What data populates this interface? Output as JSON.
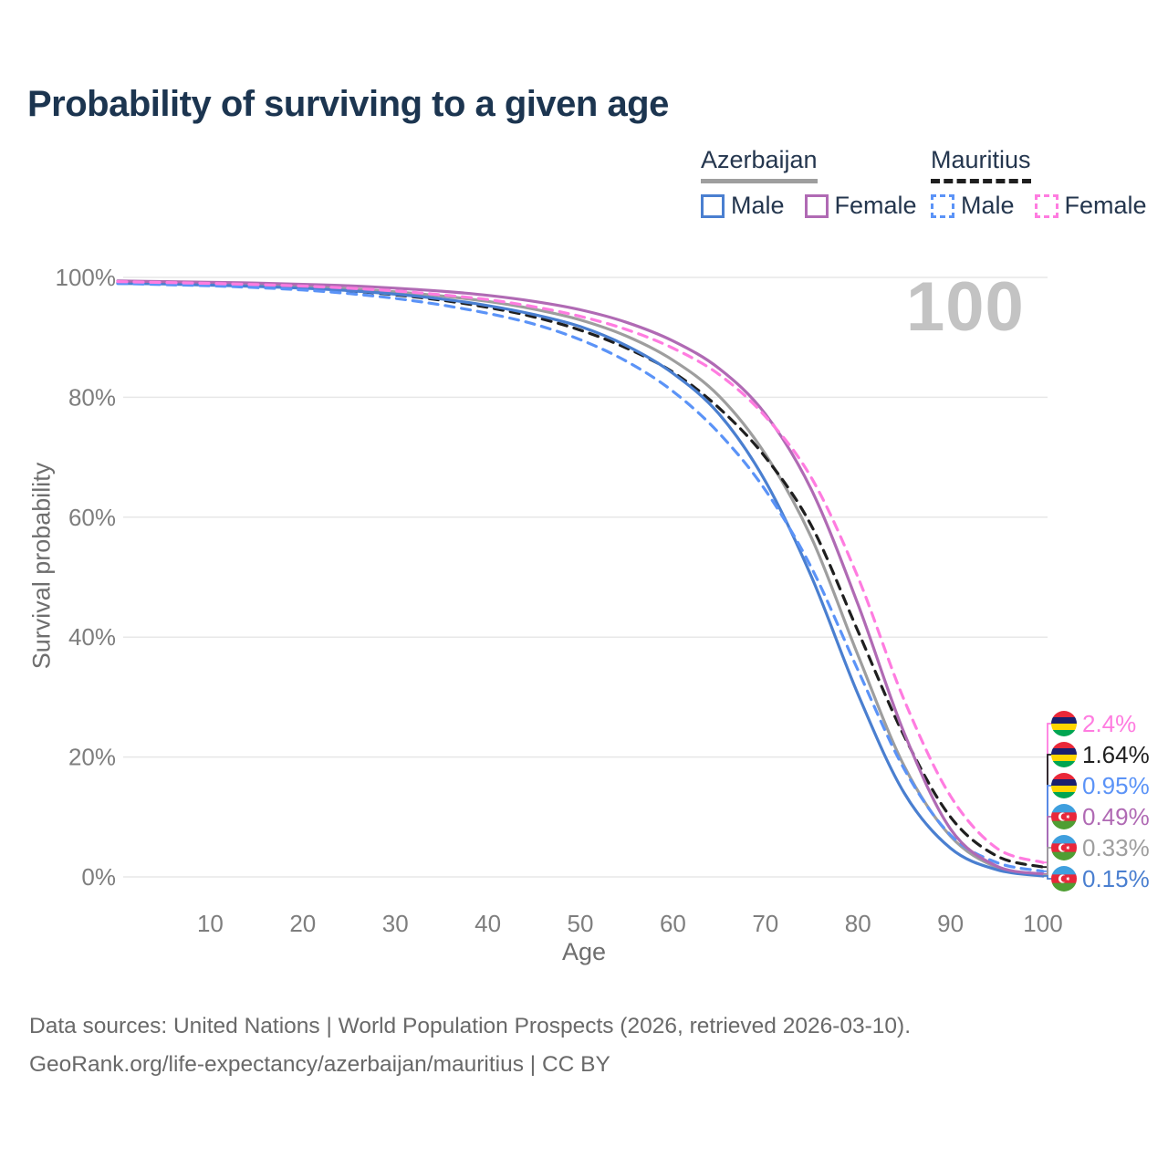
{
  "header": {
    "title": "Probability of surviving to a given age"
  },
  "legend": {
    "groups": [
      {
        "country": "Azerbaijan",
        "swatch_style": "solid",
        "swatch_color": "#9e9e9e",
        "items": [
          {
            "label": "Male",
            "box_style": "solid",
            "box_color": "#4a7fd0"
          },
          {
            "label": "Female",
            "box_style": "solid",
            "box_color": "#b06ab4"
          }
        ]
      },
      {
        "country": "Mauritius",
        "swatch_style": "dashed",
        "swatch_color": "#1f1f1f",
        "items": [
          {
            "label": "Male",
            "box_style": "dashed",
            "box_color": "#5b93f7"
          },
          {
            "label": "Female",
            "box_style": "dashed",
            "box_color": "#ff7ce0"
          }
        ]
      }
    ]
  },
  "chart": {
    "watermark": "100",
    "y_axis_label": "Survival probability",
    "x_axis_label": "Age"
  },
  "chart_data": {
    "type": "line",
    "title": "Probability of surviving to a given age",
    "xlabel": "Age",
    "ylabel": "Survival probability",
    "xlim": [
      0,
      100
    ],
    "ylim": [
      0,
      100
    ],
    "grid": "horizontal",
    "legend_position": "top-right",
    "x_ticks": [
      10,
      20,
      30,
      40,
      50,
      60,
      70,
      80,
      90,
      100
    ],
    "y_ticks": [
      {
        "label": "0%",
        "value": 0
      },
      {
        "label": "20%",
        "value": 20
      },
      {
        "label": "40%",
        "value": 40
      },
      {
        "label": "60%",
        "value": 60
      },
      {
        "label": "80%",
        "value": 80
      },
      {
        "label": "100%",
        "value": 100
      }
    ],
    "x": [
      0,
      5,
      10,
      15,
      20,
      25,
      30,
      35,
      40,
      45,
      50,
      55,
      60,
      65,
      70,
      75,
      80,
      85,
      90,
      95,
      100
    ],
    "series": [
      {
        "name": "Azerbaijan",
        "country": "Azerbaijan",
        "sex": "both",
        "color": "#9e9e9e",
        "dashed": false,
        "end_value_pct": 0.33,
        "values": [
          99.2,
          99.05,
          98.9,
          98.7,
          98.45,
          98.1,
          97.6,
          96.9,
          96.0,
          94.7,
          92.9,
          90.2,
          86.2,
          80.2,
          70.5,
          56.5,
          37.0,
          18.5,
          6.8,
          1.6,
          0.33
        ]
      },
      {
        "name": "Mauritius",
        "country": "Mauritius",
        "sex": "both",
        "color": "#1f1f1f",
        "dashed": true,
        "end_value_pct": 1.64,
        "values": [
          99.1,
          98.95,
          98.8,
          98.55,
          98.2,
          97.75,
          97.1,
          96.2,
          95.0,
          93.4,
          91.2,
          88.2,
          84.2,
          78.2,
          70.0,
          58.5,
          41.0,
          23.5,
          10.0,
          3.5,
          1.64
        ]
      },
      {
        "name": "Azerbaijan Male",
        "country": "Azerbaijan",
        "sex": "male",
        "color": "#4a7fd0",
        "dashed": false,
        "end_value_pct": 0.15,
        "values": [
          99.0,
          98.9,
          98.7,
          98.5,
          98.2,
          97.8,
          97.2,
          96.4,
          95.3,
          93.8,
          91.8,
          88.6,
          84.0,
          77.2,
          66.0,
          50.0,
          30.5,
          14.0,
          4.8,
          1.2,
          0.15
        ]
      },
      {
        "name": "Mauritius Male",
        "country": "Mauritius",
        "sex": "male",
        "color": "#5b93f7",
        "dashed": true,
        "end_value_pct": 0.95,
        "values": [
          99.0,
          98.8,
          98.6,
          98.3,
          97.9,
          97.3,
          96.5,
          95.4,
          94.0,
          92.2,
          89.6,
          86.0,
          81.0,
          74.0,
          64.5,
          51.5,
          34.5,
          18.0,
          7.0,
          2.4,
          0.95
        ]
      },
      {
        "name": "Azerbaijan Female",
        "country": "Azerbaijan",
        "sex": "female",
        "color": "#b06ab4",
        "dashed": false,
        "end_value_pct": 0.49,
        "values": [
          99.4,
          99.3,
          99.2,
          99.05,
          98.85,
          98.6,
          98.2,
          97.7,
          97.0,
          96.0,
          94.6,
          92.5,
          89.4,
          84.8,
          77.2,
          64.5,
          45.5,
          24.0,
          8.0,
          1.8,
          0.49
        ]
      },
      {
        "name": "Mauritius Female",
        "country": "Mauritius",
        "sex": "female",
        "color": "#ff7ce0",
        "dashed": true,
        "end_value_pct": 2.4,
        "values": [
          99.3,
          99.15,
          99.0,
          98.8,
          98.55,
          98.2,
          97.75,
          97.1,
          96.3,
          95.1,
          93.5,
          91.3,
          88.2,
          83.8,
          76.8,
          66.5,
          50.0,
          29.5,
          13.5,
          4.8,
          2.4
        ]
      }
    ]
  },
  "annotations": [
    {
      "value": "2.4%",
      "pct": 2.4,
      "color": "#ff7ce0",
      "flag": "mauritius",
      "series": "Mauritius Female"
    },
    {
      "value": "1.64%",
      "pct": 1.64,
      "color": "#1f1f1f",
      "flag": "mauritius",
      "series": "Mauritius"
    },
    {
      "value": "0.95%",
      "pct": 0.95,
      "color": "#5b93f7",
      "flag": "mauritius",
      "series": "Mauritius Male"
    },
    {
      "value": "0.49%",
      "pct": 0.49,
      "color": "#b06ab4",
      "flag": "azerbaijan",
      "series": "Azerbaijan Female"
    },
    {
      "value": "0.33%",
      "pct": 0.33,
      "color": "#9e9e9e",
      "flag": "azerbaijan",
      "series": "Azerbaijan"
    },
    {
      "value": "0.15%",
      "pct": 0.15,
      "color": "#4a7fd0",
      "flag": "azerbaijan",
      "series": "Azerbaijan Male"
    }
  ],
  "flags": {
    "mauritius": {
      "stripes": [
        "#EA2839",
        "#1A206D",
        "#FFD500",
        "#00A551"
      ]
    },
    "azerbaijan": {
      "stripes": [
        "#3F9FDE",
        "#E8273B",
        "#4F9E33"
      ],
      "crescent": "#ffffff",
      "star": "#ffffff"
    }
  },
  "footer": {
    "line1": "Data sources: United Nations | World Population Prospects (2026, retrieved 2026-03-10).",
    "line2": "GeoRank.org/life-expectancy/azerbaijan/mauritius | CC BY"
  }
}
